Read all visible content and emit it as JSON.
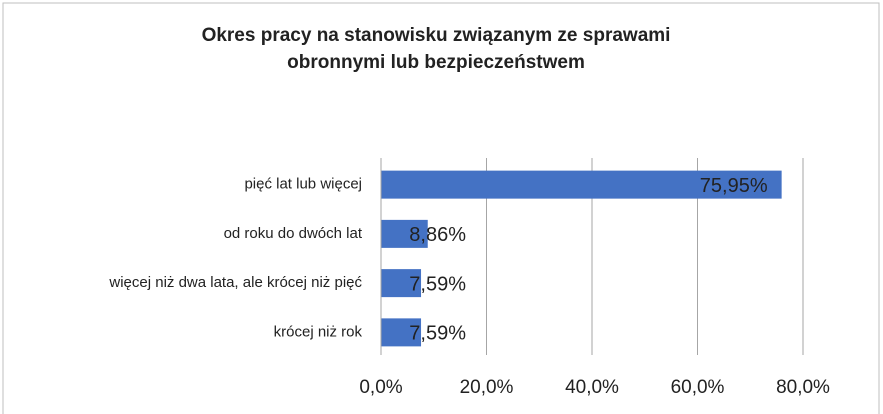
{
  "chart_data": {
    "type": "bar",
    "orientation": "horizontal",
    "title": [
      "Okres pracy na stanowisku związanym ze sprawami",
      "obronnymi lub bezpieczeństwem"
    ],
    "categories": [
      "pięć lat lub więcej",
      "od roku do dwóch lat",
      "więcej niż dwa lata, ale krócej niż pięć",
      "krócej niż rok"
    ],
    "values": [
      75.95,
      8.86,
      7.59,
      7.59
    ],
    "value_labels": [
      "75,95%",
      "8,86%",
      "7,59%",
      "7,59%"
    ],
    "color": "#4472c4",
    "xlim": [
      0,
      80
    ],
    "xticks": [
      {
        "value": 0,
        "label": "0,0%"
      },
      {
        "value": 20,
        "label": "20,0%"
      },
      {
        "value": 40,
        "label": "40,0%"
      },
      {
        "value": 60,
        "label": "60,0%"
      },
      {
        "value": 80,
        "label": "80,0%"
      }
    ],
    "grid": true
  }
}
